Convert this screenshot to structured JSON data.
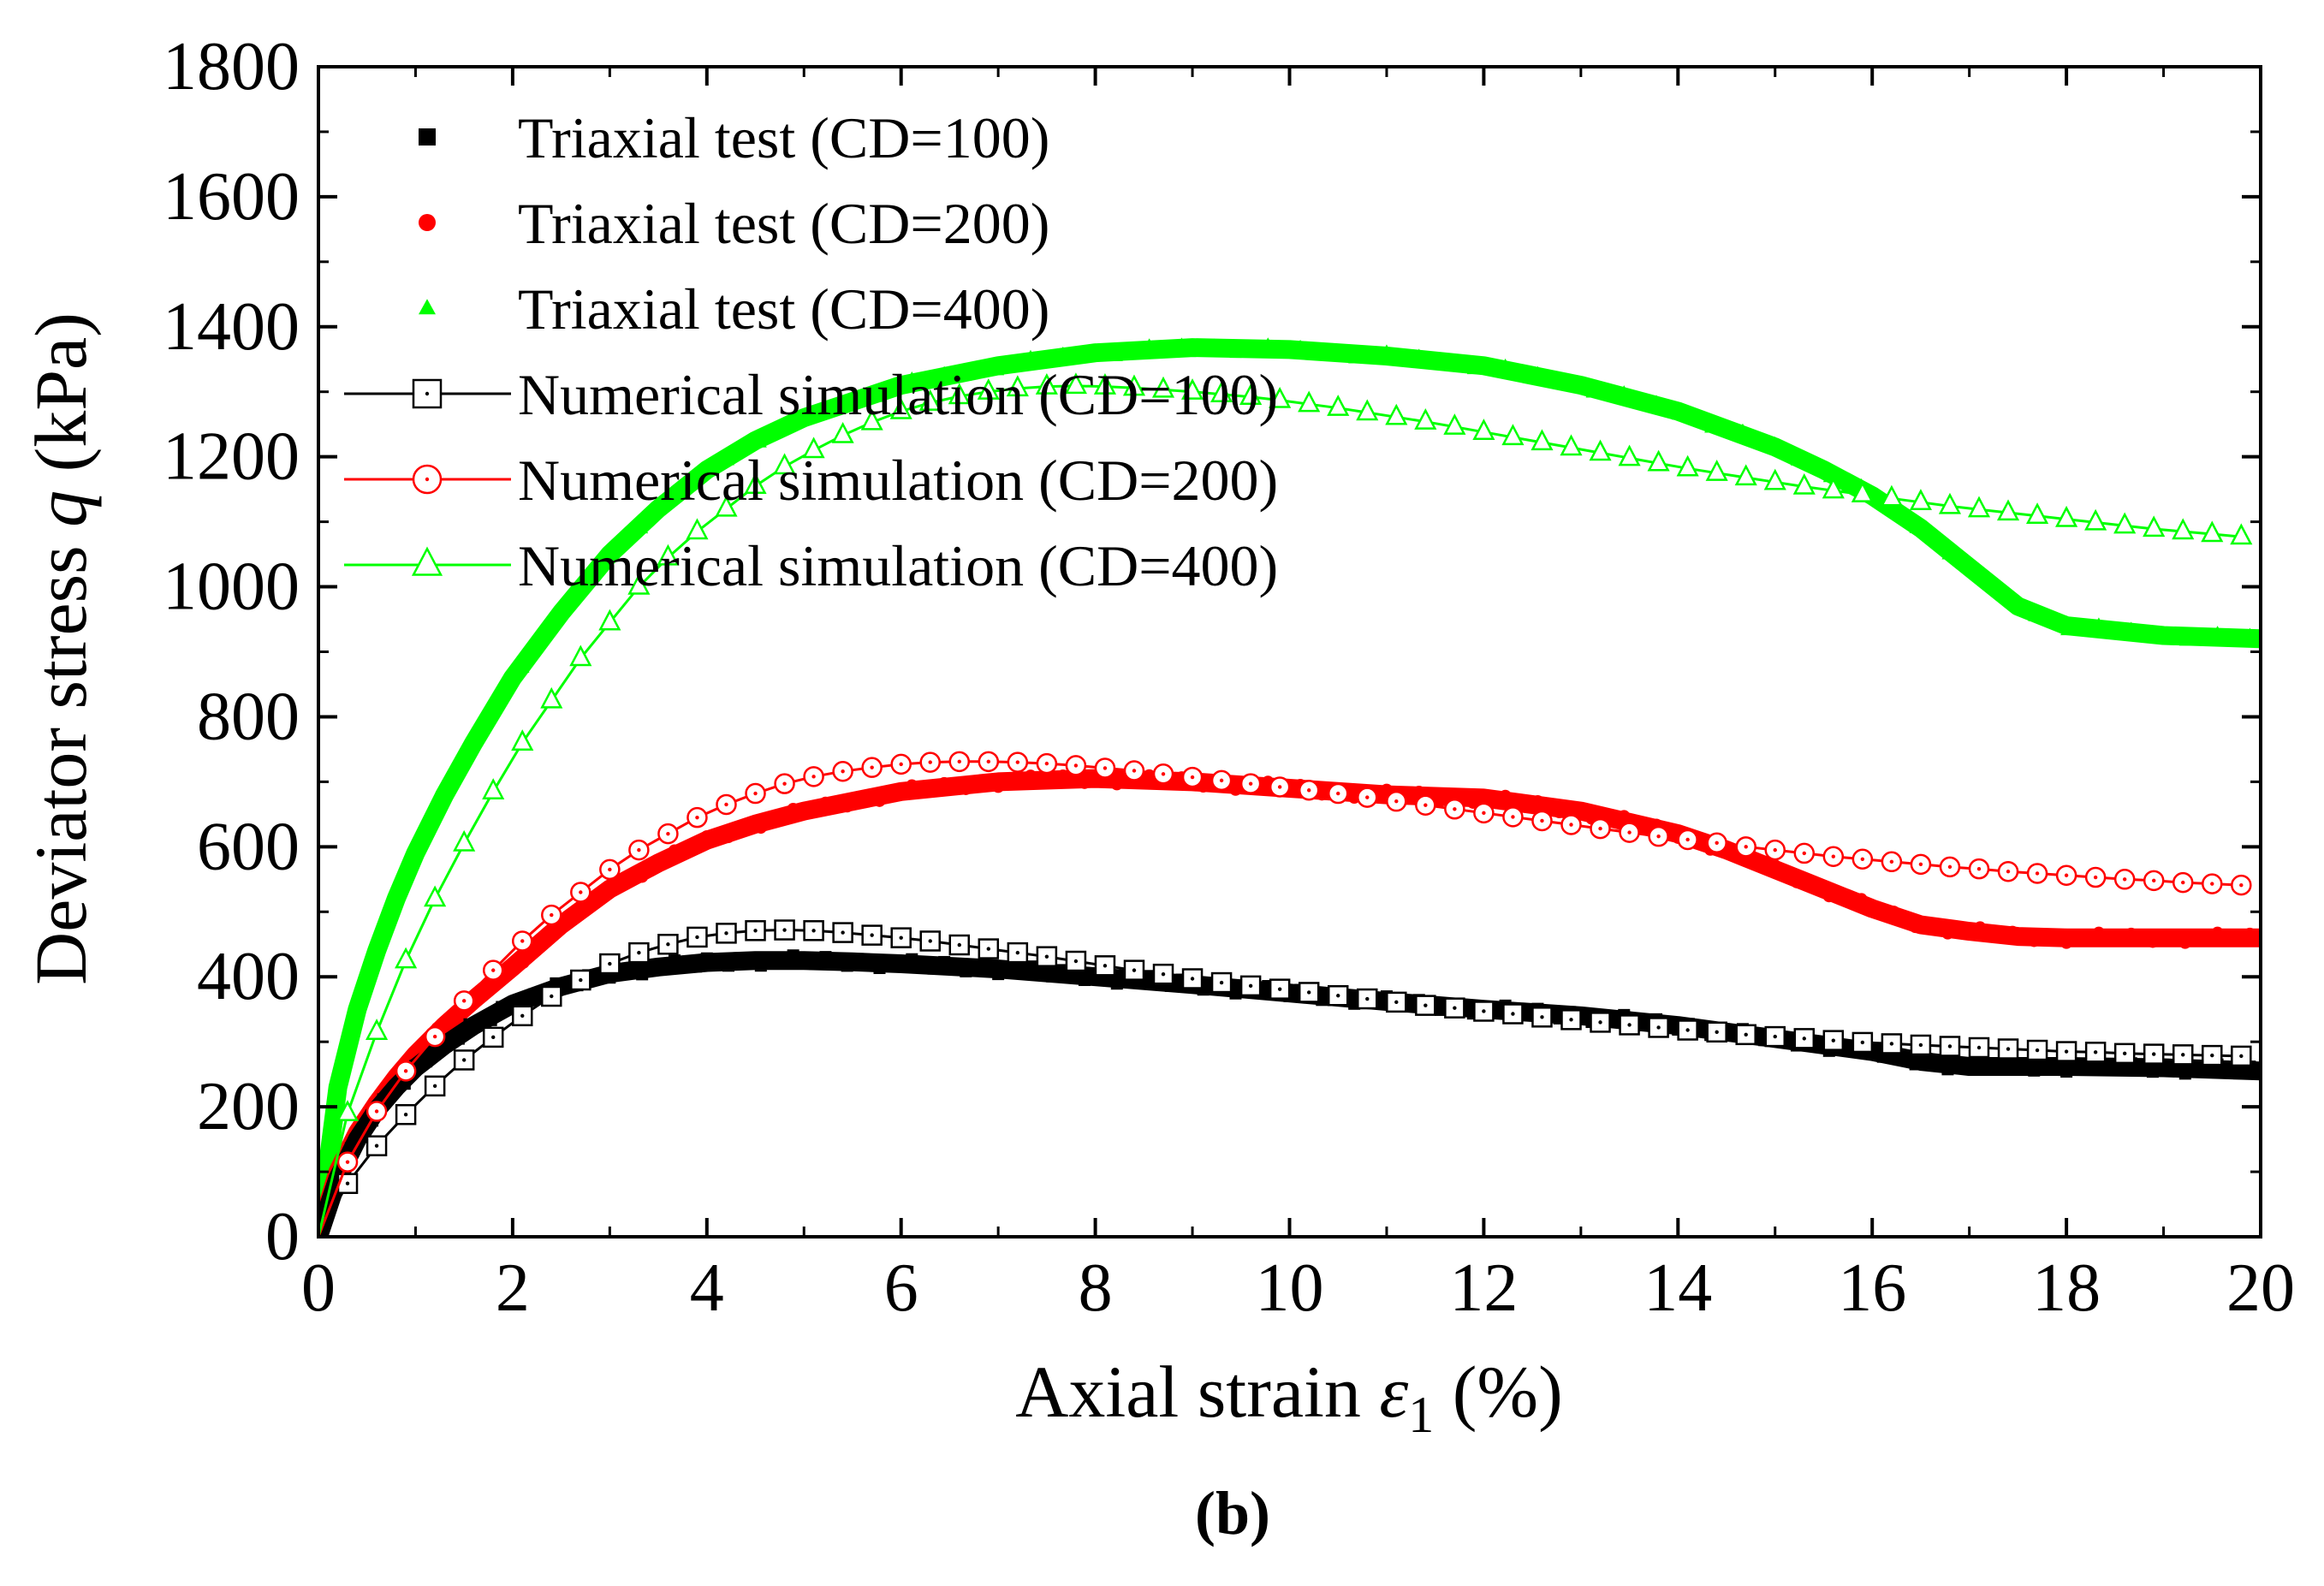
{
  "chart_data": {
    "type": "scatter",
    "panel_label": "(b)",
    "xlabel": {
      "prefix": "Axial strain ",
      "symbol": "ε",
      "subscript": "1",
      "suffix": " (%)"
    },
    "ylabel": {
      "prefix": "Deviator stress ",
      "symbol": "q",
      "suffix": " (kPa)"
    },
    "xlim": [
      0,
      20
    ],
    "ylim": [
      0,
      1800
    ],
    "xticks": [
      0,
      2,
      4,
      6,
      8,
      10,
      12,
      14,
      16,
      18,
      20
    ],
    "yticks": [
      0,
      200,
      400,
      600,
      800,
      1000,
      1200,
      1400,
      1600,
      1800
    ],
    "x_tick_labels": [
      "0",
      "2",
      "4",
      "6",
      "8",
      "10",
      "12",
      "14",
      "16",
      "18",
      "20"
    ],
    "y_tick_labels": [
      "0",
      "200",
      "400",
      "600",
      "800",
      "1000",
      "1200",
      "1400",
      "1600",
      "1800"
    ],
    "grid": false,
    "legend_position": "top-left",
    "series": [
      {
        "name": "Triaxial test (CD=100)",
        "kind": "test",
        "marker": "filled-square",
        "color": "#000000",
        "x": [
          0,
          0.2,
          0.4,
          0.6,
          0.8,
          1.0,
          1.3,
          1.6,
          2.0,
          2.5,
          3.0,
          3.5,
          4.0,
          4.5,
          5.0,
          5.5,
          6.0,
          7.0,
          8.0,
          9.0,
          10.0,
          11.0,
          12.0,
          13.0,
          14.0,
          15.0,
          16.0,
          16.5,
          17.0,
          18.0,
          19.0,
          20.0
        ],
        "y": [
          0,
          90,
          150,
          195,
          230,
          260,
          295,
          325,
          358,
          385,
          405,
          415,
          422,
          425,
          425,
          423,
          420,
          412,
          400,
          388,
          375,
          362,
          350,
          340,
          325,
          305,
          285,
          270,
          262,
          262,
          260,
          255
        ]
      },
      {
        "name": "Triaxial test (CD=200)",
        "kind": "test",
        "marker": "filled-circle",
        "color": "#ff0000",
        "x": [
          0,
          0.2,
          0.4,
          0.6,
          0.8,
          1.0,
          1.3,
          1.6,
          2.0,
          2.5,
          3.0,
          3.5,
          4.0,
          4.5,
          5.0,
          6.0,
          7.0,
          8.0,
          9.0,
          10.0,
          11.0,
          12.0,
          13.0,
          14.0,
          14.5,
          15.0,
          15.5,
          16.0,
          16.5,
          17.0,
          17.5,
          18.0,
          19.0,
          20.0
        ],
        "y": [
          0,
          100,
          160,
          205,
          245,
          280,
          325,
          365,
          415,
          480,
          535,
          575,
          610,
          635,
          655,
          685,
          700,
          705,
          700,
          690,
          680,
          675,
          655,
          620,
          595,
          565,
          535,
          505,
          480,
          470,
          462,
          460,
          460,
          460
        ]
      },
      {
        "name": "Triaxial test (CD=400)",
        "kind": "test",
        "marker": "filled-triangle",
        "color": "#00ff00",
        "x": [
          0,
          0.2,
          0.4,
          0.6,
          0.8,
          1.0,
          1.3,
          1.6,
          2.0,
          2.5,
          3.0,
          3.5,
          4.0,
          4.5,
          5.0,
          6.0,
          7.0,
          8.0,
          9.0,
          10.0,
          11.0,
          12.0,
          13.0,
          14.0,
          15.0,
          15.5,
          16.0,
          16.5,
          17.0,
          17.5,
          18.0,
          19.0,
          20.0
        ],
        "y": [
          0,
          230,
          350,
          440,
          520,
          590,
          680,
          760,
          860,
          960,
          1050,
          1120,
          1180,
          1225,
          1260,
          1310,
          1340,
          1360,
          1368,
          1365,
          1355,
          1340,
          1310,
          1270,
          1215,
          1180,
          1140,
          1090,
          1030,
          970,
          940,
          925,
          920
        ]
      },
      {
        "name": "Numerical simulation (CD=100)",
        "kind": "simulation",
        "marker": "open-square",
        "color": "#000000",
        "x": [
          0,
          0.3,
          0.6,
          0.9,
          1.2,
          1.5,
          1.8,
          2.1,
          2.4,
          2.7,
          3.0,
          3.3,
          3.6,
          3.9,
          4.2,
          4.5,
          4.8,
          5.1,
          5.4,
          5.7,
          6.0,
          6.3,
          6.6,
          6.9,
          7.2,
          7.5,
          7.8,
          8.1,
          8.4,
          8.7,
          9.0,
          9.3,
          9.6,
          9.9,
          10.2,
          10.5,
          10.8,
          11.1,
          11.4,
          11.7,
          12.0,
          12.3,
          12.6,
          12.9,
          13.2,
          13.5,
          13.8,
          14.1,
          14.4,
          14.7,
          15.0,
          15.3,
          15.6,
          15.9,
          16.2,
          16.5,
          16.8,
          17.1,
          17.4,
          17.7,
          18.0,
          18.3,
          18.6,
          18.9,
          19.2,
          19.5,
          19.8
        ],
        "y": [
          0,
          82,
          140,
          188,
          232,
          272,
          307,
          340,
          370,
          395,
          420,
          437,
          450,
          461,
          467,
          471,
          472,
          471,
          468,
          464,
          460,
          455,
          449,
          443,
          437,
          431,
          424,
          417,
          410,
          404,
          397,
          391,
          386,
          381,
          376,
          371,
          366,
          361,
          356,
          352,
          347,
          343,
          338,
          334,
          330,
          326,
          322,
          318,
          315,
          311,
          308,
          305,
          302,
          299,
          297,
          295,
          293,
          291,
          289,
          287,
          285,
          284,
          282,
          281,
          280,
          279,
          278
        ]
      },
      {
        "name": "Numerical simulation (CD=200)",
        "kind": "simulation",
        "marker": "open-circle",
        "color": "#ff0000",
        "x": [
          0,
          0.3,
          0.6,
          0.9,
          1.2,
          1.5,
          1.8,
          2.1,
          2.4,
          2.7,
          3.0,
          3.3,
          3.6,
          3.9,
          4.2,
          4.5,
          4.8,
          5.1,
          5.4,
          5.7,
          6.0,
          6.3,
          6.6,
          6.9,
          7.2,
          7.5,
          7.8,
          8.1,
          8.4,
          8.7,
          9.0,
          9.3,
          9.6,
          9.9,
          10.2,
          10.5,
          10.8,
          11.1,
          11.4,
          11.7,
          12.0,
          12.3,
          12.6,
          12.9,
          13.2,
          13.5,
          13.8,
          14.1,
          14.4,
          14.7,
          15.0,
          15.3,
          15.6,
          15.9,
          16.2,
          16.5,
          16.8,
          17.1,
          17.4,
          17.7,
          18.0,
          18.3,
          18.6,
          18.9,
          19.2,
          19.5,
          19.8
        ],
        "y": [
          0,
          115,
          193,
          255,
          308,
          363,
          410,
          455,
          495,
          530,
          565,
          595,
          620,
          645,
          665,
          682,
          697,
          708,
          716,
          722,
          727,
          730,
          731,
          731,
          730,
          728,
          725,
          721,
          717,
          712,
          707,
          702,
          697,
          692,
          687,
          682,
          676,
          670,
          664,
          658,
          652,
          646,
          640,
          634,
          628,
          622,
          616,
          611,
          606,
          600,
          595,
          590,
          585,
          581,
          577,
          573,
          569,
          566,
          562,
          559,
          556,
          553,
          550,
          548,
          545,
          543,
          541
        ]
      },
      {
        "name": "Numerical simulation (CD=400)",
        "kind": "simulation",
        "marker": "open-triangle",
        "color": "#00ff00",
        "x": [
          0,
          0.3,
          0.6,
          0.9,
          1.2,
          1.5,
          1.8,
          2.1,
          2.4,
          2.7,
          3.0,
          3.3,
          3.6,
          3.9,
          4.2,
          4.5,
          4.8,
          5.1,
          5.4,
          5.7,
          6.0,
          6.3,
          6.6,
          6.9,
          7.2,
          7.5,
          7.8,
          8.1,
          8.4,
          8.7,
          9.0,
          9.3,
          9.6,
          9.9,
          10.2,
          10.5,
          10.8,
          11.1,
          11.4,
          11.7,
          12.0,
          12.3,
          12.6,
          12.9,
          13.2,
          13.5,
          13.8,
          14.1,
          14.4,
          14.7,
          15.0,
          15.3,
          15.6,
          15.9,
          16.2,
          16.5,
          16.8,
          17.1,
          17.4,
          17.7,
          18.0,
          18.3,
          18.6,
          18.9,
          19.2,
          19.5,
          19.8
        ],
        "y": [
          0,
          190,
          315,
          425,
          520,
          605,
          685,
          760,
          825,
          890,
          945,
          1000,
          1045,
          1085,
          1120,
          1155,
          1185,
          1210,
          1233,
          1253,
          1270,
          1283,
          1293,
          1300,
          1305,
          1308,
          1309,
          1308,
          1306,
          1303,
          1300,
          1296,
          1292,
          1287,
          1281,
          1275,
          1268,
          1261,
          1254,
          1246,
          1238,
          1230,
          1222,
          1214,
          1206,
          1198,
          1190,
          1182,
          1175,
          1168,
          1161,
          1154,
          1148,
          1142,
          1136,
          1130,
          1124,
          1119,
          1114,
          1109,
          1104,
          1099,
          1094,
          1089,
          1085,
          1081,
          1077
        ]
      }
    ]
  }
}
